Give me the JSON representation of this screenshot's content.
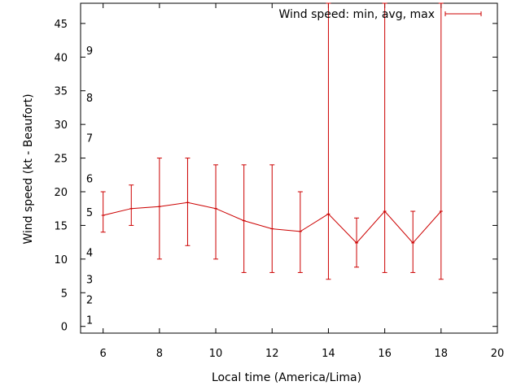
{
  "chart_data": {
    "type": "line",
    "xlabel": "Local time (America/Lima)",
    "ylabel": "Wind speed (kt - Beaufort)",
    "xlim": [
      5.2,
      20
    ],
    "ylim": [
      -1,
      48
    ],
    "x_ticks": [
      6,
      8,
      10,
      12,
      14,
      16,
      18,
      20
    ],
    "y_ticks": [
      0,
      5,
      10,
      15,
      20,
      25,
      30,
      35,
      40,
      45
    ],
    "grid": false,
    "legend_position": "top-right",
    "color": "#cc0000",
    "series": [
      {
        "name": "Wind speed: min, avg, max",
        "x": [
          6,
          7,
          8,
          9,
          10,
          11,
          12,
          13,
          14,
          15,
          16,
          17,
          18
        ],
        "avg": [
          16.5,
          17.5,
          17.8,
          18.4,
          17.5,
          15.7,
          14.5,
          14.1,
          16.7,
          12.4,
          17.1,
          12.4,
          17.1
        ],
        "min": [
          14,
          15,
          10,
          12,
          10,
          8,
          8,
          8,
          7,
          8.8,
          8,
          8,
          7
        ],
        "max": [
          20,
          21,
          25,
          25,
          24,
          24,
          24,
          20,
          48,
          16.1,
          48,
          17.1,
          48
        ]
      }
    ],
    "beaufort_scale": [
      {
        "label": "1",
        "speed": 1
      },
      {
        "label": "2",
        "speed": 4
      },
      {
        "label": "3",
        "speed": 7
      },
      {
        "label": "4",
        "speed": 11
      },
      {
        "label": "5",
        "speed": 17
      },
      {
        "label": "6",
        "speed": 22
      },
      {
        "label": "7",
        "speed": 28
      },
      {
        "label": "8",
        "speed": 34
      },
      {
        "label": "9",
        "speed": 41
      }
    ]
  }
}
